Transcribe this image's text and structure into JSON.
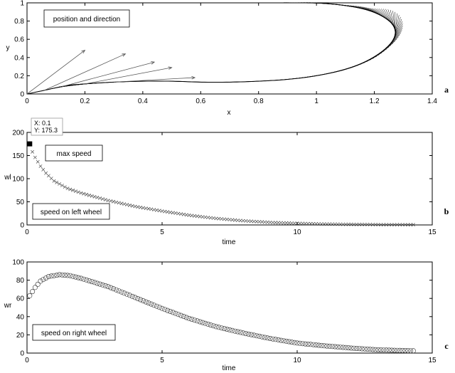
{
  "chart_data": [
    {
      "type": "line",
      "xlabel": "x",
      "ylabel": "y",
      "xlim": [
        0,
        1.4
      ],
      "ylim": [
        0,
        1
      ],
      "xticks": [
        "0",
        "0.2",
        "0.4",
        "0.6",
        "0.8",
        "1",
        "1.2",
        "1.4"
      ],
      "yticks": [
        "0",
        "0.2",
        "0.4",
        "0.6",
        "0.8",
        "1"
      ],
      "annotation": "position and direction",
      "panel_label": "a",
      "grid": false,
      "series": [
        {
          "x": [
            0,
            0.06,
            0.12,
            0.2,
            0.3,
            0.4,
            0.5,
            0.6,
            0.7,
            0.8,
            0.9,
            1.0,
            1.1,
            1.18,
            1.24,
            1.27,
            1.27,
            1.24,
            1.18,
            1.1,
            1.02,
            0.96
          ],
          "y": [
            0,
            0.04,
            0.08,
            0.11,
            0.13,
            0.14,
            0.14,
            0.13,
            0.13,
            0.14,
            0.16,
            0.2,
            0.27,
            0.37,
            0.5,
            0.62,
            0.73,
            0.83,
            0.92,
            0.97,
            0.995,
            1.0
          ]
        }
      ],
      "direction_arrows": [
        {
          "x": 0,
          "y": 0,
          "dx": 0.2,
          "dy": 0.48
        },
        {
          "x": 0.06,
          "y": 0.04,
          "dx": 0.28,
          "dy": 0.4
        },
        {
          "x": 0.12,
          "y": 0.08,
          "dx": 0.32,
          "dy": 0.27
        },
        {
          "x": 0.2,
          "y": 0.11,
          "dx": 0.3,
          "dy": 0.18
        },
        {
          "x": 0.3,
          "y": 0.13,
          "dx": 0.28,
          "dy": 0.05
        }
      ]
    },
    {
      "type": "scatter",
      "xlabel": "time",
      "ylabel": "wl",
      "xlim": [
        0,
        15
      ],
      "ylim": [
        0,
        200
      ],
      "xticks": [
        "0",
        "5",
        "10",
        "15"
      ],
      "yticks": [
        "0",
        "50",
        "100",
        "150",
        "200"
      ],
      "panel_label": "b",
      "grid": false,
      "marker": "x",
      "series": [
        {
          "t_start": 0.1,
          "t_end": 14.3,
          "t_step": 0.1,
          "y_end": 0.5,
          "y_points": [
            [
              0.1,
              175.3
            ],
            [
              0.2,
              158
            ],
            [
              0.3,
              146
            ],
            [
              0.5,
              127
            ],
            [
              0.7,
              112
            ],
            [
              1.0,
              95
            ],
            [
              1.5,
              79
            ],
            [
              2,
              69
            ],
            [
              3,
              53
            ],
            [
              4,
              40
            ],
            [
              5,
              30
            ],
            [
              6,
              21
            ],
            [
              7,
              14
            ],
            [
              8,
              9
            ],
            [
              9,
              5.5
            ],
            [
              10,
              3.5
            ],
            [
              11,
              2
            ],
            [
              12,
              1.2
            ],
            [
              13,
              0.7
            ],
            [
              14.3,
              0.5
            ]
          ]
        }
      ],
      "annotations": [
        "max speed",
        "speed on left wheel"
      ],
      "datatip": {
        "x": "X: 0.1",
        "y": "Y: 175.3",
        "x_val": 0.1,
        "y_val": 175.3
      }
    },
    {
      "type": "scatter",
      "xlabel": "time",
      "ylabel": "wr",
      "xlim": [
        0,
        15
      ],
      "ylim": [
        0,
        100
      ],
      "xticks": [
        "0",
        "5",
        "10",
        "15"
      ],
      "yticks": [
        "0",
        "20",
        "40",
        "60",
        "80",
        "100"
      ],
      "panel_label": "c",
      "grid": false,
      "marker": "o",
      "series": [
        {
          "t_start": 0.1,
          "t_end": 14.3,
          "t_step": 0.1,
          "y_points": [
            [
              0.1,
              63
            ],
            [
              0.3,
              72
            ],
            [
              0.5,
              79
            ],
            [
              0.8,
              84
            ],
            [
              1.2,
              86
            ],
            [
              1.6,
              85
            ],
            [
              2,
              82
            ],
            [
              3,
              73
            ],
            [
              4,
              61
            ],
            [
              5,
              49
            ],
            [
              6,
              38
            ],
            [
              7,
              29
            ],
            [
              8,
              22
            ],
            [
              9,
              16
            ],
            [
              10,
              11
            ],
            [
              11,
              8
            ],
            [
              12,
              5.5
            ],
            [
              13,
              3.5
            ],
            [
              14.3,
              2.5
            ]
          ]
        }
      ],
      "annotations": [
        "speed on right wheel"
      ]
    }
  ]
}
